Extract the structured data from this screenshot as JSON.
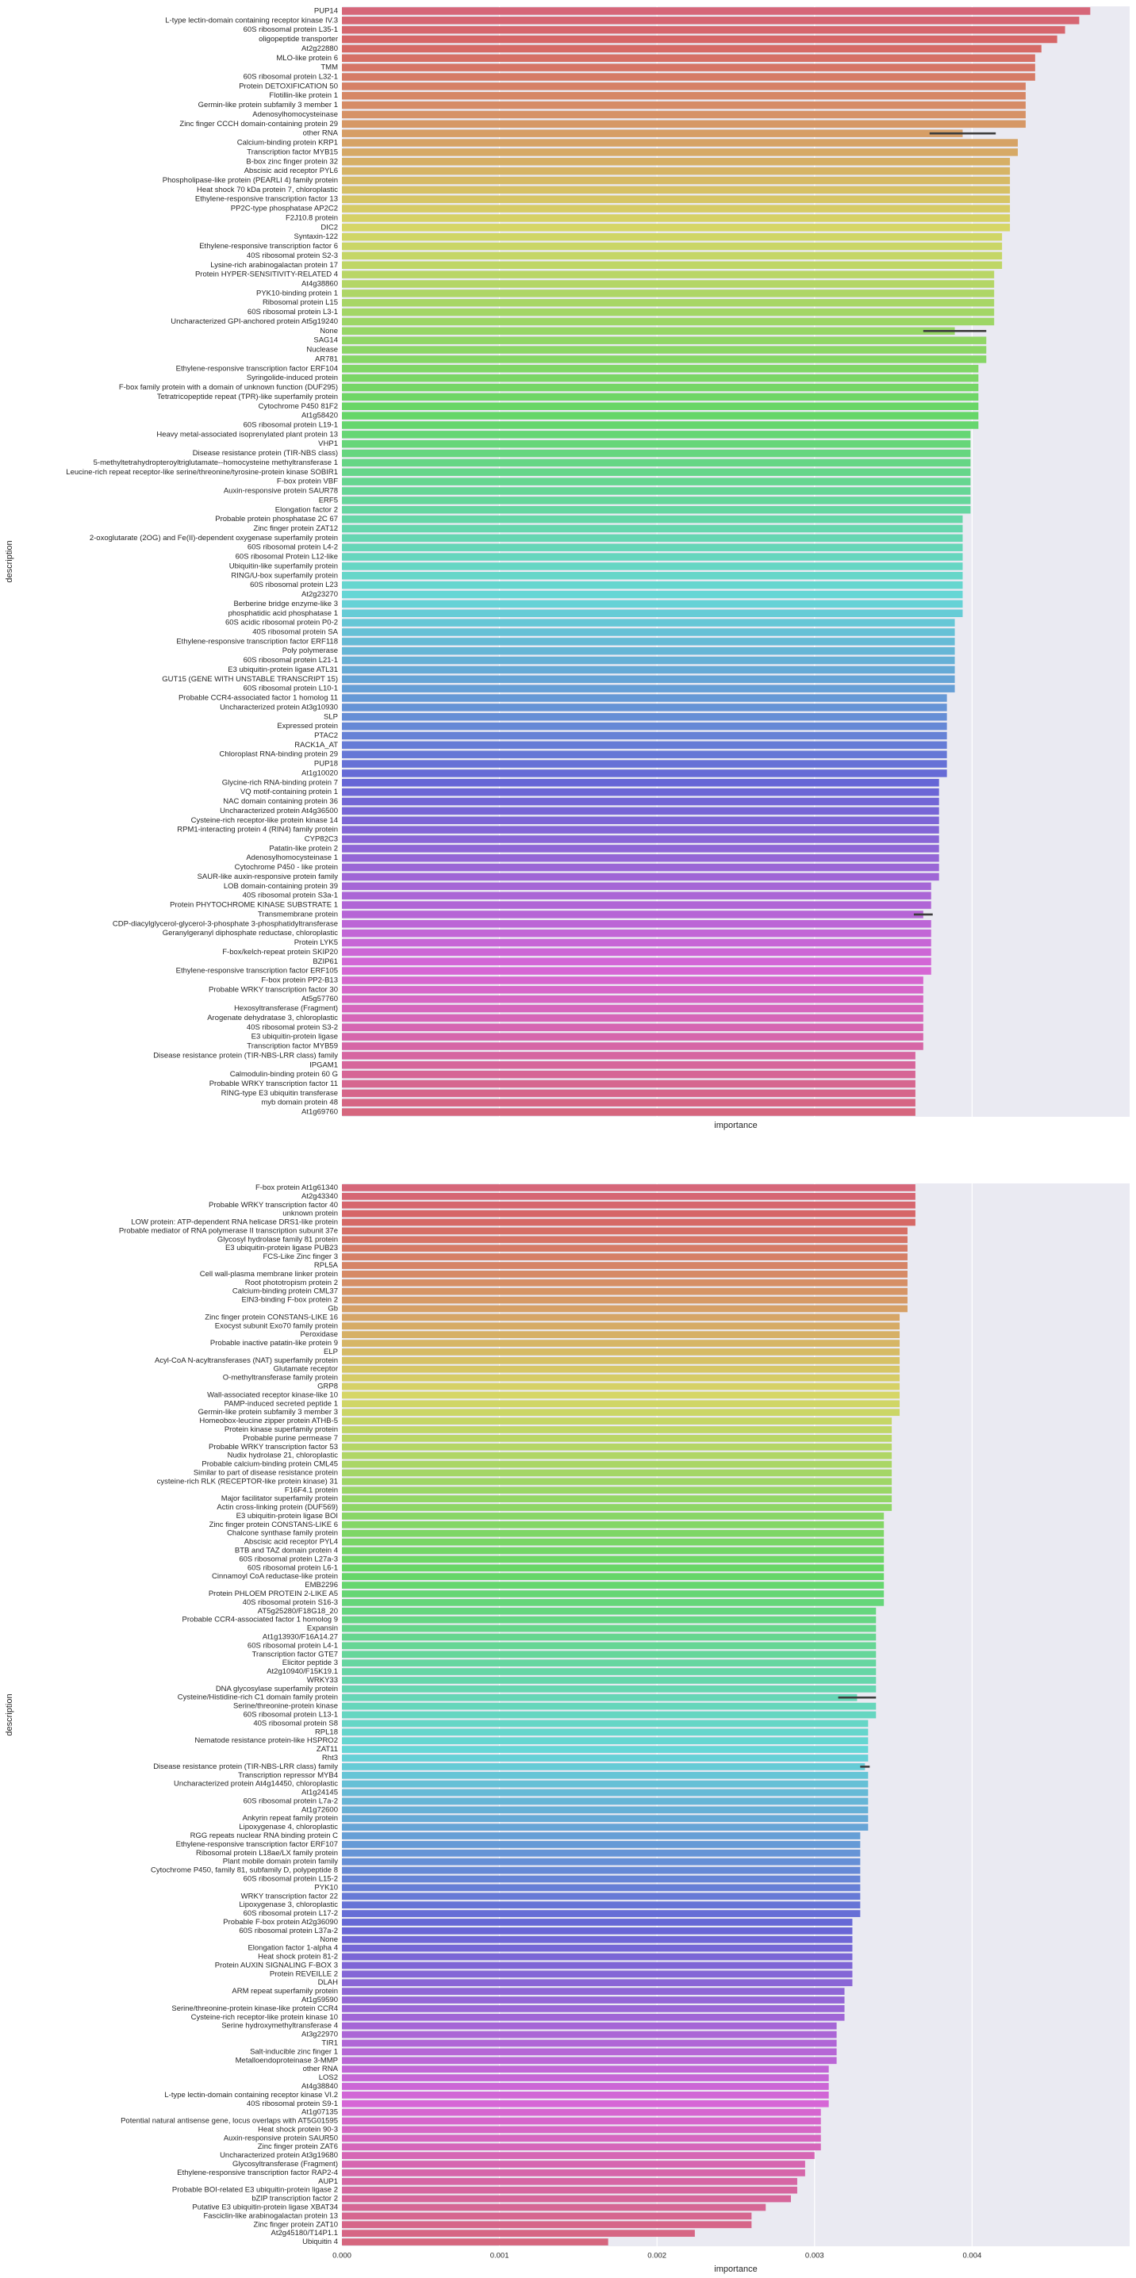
{
  "chart_data": [
    {
      "type": "bar",
      "orientation": "horizontal",
      "x_label": "importance",
      "y_label": "description",
      "palette": "husl",
      "grid": true,
      "show_xtick_labels": false,
      "xlim": [
        0,
        0.005
      ],
      "xticks": [
        0,
        0.001,
        0.002,
        0.003,
        0.004
      ],
      "categories": [
        "PUP14",
        "L-type lectin-domain containing receptor kinase IV.3",
        "60S ribosomal protein L35-1",
        "oligopeptide transporter",
        "At2g22880",
        "MLO-like protein 6",
        "TMM",
        "60S ribosomal protein L32-1",
        "Protein DETOXIFICATION 50",
        "Flotillin-like protein 1",
        "Germin-like protein subfamily 3 member 1",
        "Adenosylhomocysteinase",
        "Zinc finger CCCH domain-containing protein 29",
        "other RNA",
        "Calcium-binding protein KRP1",
        "Transcription factor MYB15",
        "B-box zinc finger protein 32",
        "Abscisic acid receptor PYL6",
        "Phospholipase-like protein (PEARLI 4) family protein",
        "Heat shock 70 kDa protein 7, chloroplastic",
        "Ethylene-responsive transcription factor 13",
        "PP2C-type phosphatase AP2C2",
        "F2J10.8 protein",
        "DIC2",
        "Syntaxin-122",
        "Ethylene-responsive transcription factor 6",
        "40S ribosomal protein S2-3",
        "Lysine-rich arabinogalactan protein 17",
        "Protein HYPER-SENSITIVITY-RELATED 4",
        "At4g38860",
        "PYK10-binding protein 1",
        "Ribosomal protein L15",
        "60S ribosomal protein L3-1",
        "Uncharacterized GPI-anchored protein At5g19240",
        "None",
        "SAG14",
        "Nuclease",
        "AR781",
        "Ethylene-responsive transcription factor ERF104",
        "Syringolide-induced protein",
        "F-box family protein with a domain of unknown function (DUF295)",
        "Tetratricopeptide repeat (TPR)-like superfamily protein",
        "Cytochrome P450 81F2",
        "At1g58420",
        "60S ribosomal protein L19-1",
        "Heavy metal-associated isoprenylated plant protein 13",
        "VHP1",
        "Disease resistance protein (TIR-NBS class)",
        "5-methyltetrahydropteroyltriglutamate--homocysteine methyltransferase 1",
        "Leucine-rich repeat receptor-like serine/threonine/tyrosine-protein kinase SOBIR1",
        "F-box protein VBF",
        "Auxin-responsive protein SAUR78",
        "ERF5",
        "Elongation factor 2",
        "Probable protein phosphatase 2C 67",
        "Zinc finger protein ZAT12",
        "2-oxoglutarate (2OG) and Fe(II)-dependent oxygenase superfamily protein",
        "60S ribosomal protein L4-2",
        "60S ribosomal Protein L12-like",
        "Ubiquitin-like superfamily protein",
        "RING/U-box superfamily protein",
        "60S ribosomal protein L23",
        "At2g23270",
        "Berberine bridge enzyme-like 3",
        "phosphatidic acid phosphatase 1",
        "60S acidic ribosomal protein P0-2",
        "40S ribosomal protein SA",
        "Ethylene-responsive transcription factor ERF118",
        "Poly polymerase",
        "60S ribosomal protein L21-1",
        "E3 ubiquitin-protein ligase ATL31",
        "GUT15 (GENE WITH UNSTABLE TRANSCRIPT 15)",
        "60S ribosomal protein L10-1",
        "Probable CCR4-associated factor 1 homolog 11",
        "Uncharacterized protein At3g10930",
        "SLP",
        "Expressed protein",
        "PTAC2",
        "RACK1A_AT",
        "Chloroplast RNA-binding protein 29",
        "PUP18",
        "At1g10020",
        "Glycine-rich RNA-binding protein 7",
        "VQ motif-containing protein 1",
        "NAC domain containing protein 36",
        "Uncharacterized protein At4g36500",
        "Cysteine-rich receptor-like protein kinase 14",
        "RPM1-interacting protein 4 (RIN4) family protein",
        "CYP82C3",
        "Patatin-like protein 2",
        "Adenosylhomocysteinase 1",
        "Cytochrome P450 - like protein",
        "SAUR-like auxin-responsive protein family",
        "LOB domain-containing protein 39",
        "40S ribosomal protein S3a-1",
        "Protein PHYTOCHROME KINASE SUBSTRATE 1",
        "Transmembrane protein",
        "CDP-diacylglycerol-glycerol-3-phosphate 3-phosphatidyltransferase",
        "Geranylgeranyl diphosphate reductase, chloroplastic",
        "Protein LYK5",
        "F-box/kelch-repeat protein SKIP20",
        "BZIP61",
        "Ethylene-responsive transcription factor ERF105",
        "F-box protein PP2-B13",
        "Probable WRKY transcription factor 30",
        "At5g57760",
        "Hexosyltransferase (Fragment)",
        "Arogenate dehydratase 3, chloroplastic",
        "40S ribosomal protein S3-2",
        "E3 ubiquitin-protein ligase",
        "Transcription factor MYB59",
        "Disease resistance protein (TIR-NBS-LRR class) family",
        "IPGAM1",
        "Calmodulin-binding protein 60 G",
        "Probable WRKY transcription factor 11",
        "RING-type E3 ubiquitin transferase",
        "myb domain protein 48",
        "At1g69760"
      ],
      "values": [
        0.00475,
        0.00468,
        0.00459,
        0.00454,
        0.00444,
        0.0044,
        0.0044,
        0.0044,
        0.00434,
        0.00434,
        0.00434,
        0.00434,
        0.00434,
        0.00394,
        0.00429,
        0.00429,
        0.00424,
        0.00424,
        0.00424,
        0.00424,
        0.00424,
        0.00424,
        0.00424,
        0.00424,
        0.00419,
        0.00419,
        0.00419,
        0.00419,
        0.00414,
        0.00414,
        0.00414,
        0.00414,
        0.00414,
        0.00414,
        0.00389,
        0.00409,
        0.00409,
        0.00409,
        0.00404,
        0.00404,
        0.00404,
        0.00404,
        0.00404,
        0.00404,
        0.00404,
        0.00399,
        0.00399,
        0.00399,
        0.00399,
        0.00399,
        0.00399,
        0.00399,
        0.00399,
        0.00399,
        0.00394,
        0.00394,
        0.00394,
        0.00394,
        0.00394,
        0.00394,
        0.00394,
        0.00394,
        0.00394,
        0.00394,
        0.00394,
        0.00389,
        0.00389,
        0.00389,
        0.00389,
        0.00389,
        0.00389,
        0.00389,
        0.00389,
        0.00384,
        0.00384,
        0.00384,
        0.00384,
        0.00384,
        0.00384,
        0.00384,
        0.00384,
        0.00384,
        0.00379,
        0.00379,
        0.00379,
        0.00379,
        0.00379,
        0.00379,
        0.00379,
        0.00379,
        0.00379,
        0.00379,
        0.00379,
        0.00374,
        0.00374,
        0.00374,
        0.00369,
        0.00374,
        0.00374,
        0.00374,
        0.00374,
        0.00374,
        0.00374,
        0.00369,
        0.00369,
        0.00369,
        0.00369,
        0.00369,
        0.00369,
        0.00369,
        0.00369,
        0.00364,
        0.00364,
        0.00364,
        0.00364,
        0.00364,
        0.00364,
        0.00364
      ],
      "errors": [
        null,
        null,
        null,
        null,
        null,
        null,
        null,
        null,
        null,
        null,
        null,
        null,
        null,
        0.00021,
        null,
        null,
        null,
        null,
        null,
        null,
        null,
        null,
        null,
        null,
        null,
        null,
        null,
        null,
        null,
        null,
        null,
        null,
        null,
        null,
        0.0002,
        null,
        null,
        null,
        null,
        null,
        null,
        null,
        null,
        null,
        null,
        null,
        null,
        null,
        null,
        null,
        null,
        null,
        null,
        null,
        null,
        null,
        null,
        null,
        null,
        null,
        null,
        null,
        null,
        null,
        null,
        null,
        null,
        null,
        null,
        null,
        null,
        null,
        null,
        null,
        null,
        null,
        null,
        null,
        null,
        null,
        null,
        null,
        null,
        null,
        null,
        null,
        null,
        null,
        null,
        null,
        null,
        null,
        null,
        null,
        null,
        null,
        6e-05,
        null,
        null,
        null,
        null,
        null,
        null,
        null,
        null,
        null,
        null,
        null,
        null,
        null,
        null,
        null,
        null,
        null,
        null,
        null,
        null,
        null
      ]
    },
    {
      "type": "bar",
      "orientation": "horizontal",
      "x_label": "importance",
      "y_label": "description",
      "palette": "husl",
      "grid": true,
      "show_xtick_labels": true,
      "xlim": [
        0,
        0.005
      ],
      "xticks": [
        {
          "value": 0,
          "label": "0.000"
        },
        {
          "value": 0.001,
          "label": "0.001"
        },
        {
          "value": 0.002,
          "label": "0.002"
        },
        {
          "value": 0.003,
          "label": "0.003"
        },
        {
          "value": 0.004,
          "label": "0.004"
        }
      ],
      "categories": [
        "F-box protein At1g61340",
        "At2g43340",
        "Probable WRKY transcription factor 40",
        "unknown protein",
        "LOW protein: ATP-dependent RNA helicase DRS1-like protein",
        "Probable mediator of RNA polymerase II transcription subunit 37e",
        "Glycosyl hydrolase family 81 protein",
        "E3 ubiquitin-protein ligase PUB23",
        "FCS-Like Zinc finger 3",
        "RPL5A",
        "Cell wall-plasma membrane linker protein",
        "Root phototropism protein 2",
        "Calcium-binding protein CML37",
        "EIN3-binding F-box protein 2",
        "Gb",
        "Zinc finger protein CONSTANS-LIKE 16",
        "Exocyst subunit Exo70 family protein",
        "Peroxidase",
        "Probable inactive patatin-like protein 9",
        "ELP",
        "Acyl-CoA N-acyltransferases (NAT) superfamily protein",
        "Glutamate receptor",
        "O-methyltransferase family protein",
        "GRP8",
        "Wall-associated receptor kinase-like 10",
        "PAMP-induced secreted peptide 1",
        "Germin-like protein subfamily 3 member 3",
        "Homeobox-leucine zipper protein ATHB-5",
        "Protein kinase superfamily protein",
        "Probable purine permease 7",
        "Probable WRKY transcription factor 53",
        "Nudix hydrolase 21, chloroplastic",
        "Probable calcium-binding protein CML45",
        "Similar to part of disease resistance protein",
        "cysteine-rich RLK (RECEPTOR-like protein kinase) 31",
        "F16F4.1 protein",
        "Major facilitator superfamily protein",
        "Actin cross-linking protein (DUF569)",
        "E3 ubiquitin-protein ligase BOI",
        "Zinc finger protein CONSTANS-LIKE 6",
        "Chalcone synthase family protein",
        "Abscisic acid receptor PYL4",
        "BTB and TAZ domain protein 4",
        "60S ribosomal protein L27a-3",
        "60S ribosomal protein L6-1",
        "Cinnamoyl CoA reductase-like protein",
        "EMB2296",
        "Protein PHLOEM PROTEIN 2-LIKE A5",
        "40S ribosomal protein S16-3",
        "AT5g25280/F18G18_20",
        "Probable CCR4-associated factor 1 homolog 9",
        "Expansin",
        "At1g13930/F16A14.27",
        "60S ribosomal protein L4-1",
        "Transcription factor GTE7",
        "Elicitor peptide 3",
        "At2g10940/F15K19.1",
        "WRKY33",
        "DNA glycosylase superfamily protein",
        "Cysteine/Histidine-rich C1 domain family protein",
        "Serine/threonine-protein kinase",
        "60S ribosomal protein L13-1",
        "40S ribosomal protein S8",
        "RPL18",
        "Nematode resistance protein-like HSPRO2",
        "ZAT11",
        "Rht3",
        "Disease resistance protein (TIR-NBS-LRR class) family",
        "Transcription repressor MYB4",
        "Uncharacterized protein At4g14450, chloroplastic",
        "At1g24145",
        "60S ribosomal protein L7a-2",
        "At1g72600",
        "Ankyrin repeat family protein",
        "Lipoxygenase 4, chloroplastic",
        "RGG repeats nuclear RNA binding protein C",
        "Ethylene-responsive transcription factor ERF107",
        "Ribosomal protein L18ae/LX family protein",
        "Plant mobile domain protein family",
        "Cytochrome P450, family 81, subfamily D, polypeptide 8",
        "60S ribosomal protein L15-2",
        "PYK10",
        "WRKY transcription factor 22",
        "Lipoxygenase 3, chloroplastic",
        "60S ribosomal protein L17-2",
        "Probable F-box protein At2g36090",
        "60S ribosomal protein L37a-2",
        "None",
        "Elongation factor 1-alpha 4",
        "Heat shock protein 81-2",
        "Protein AUXIN SIGNALING F-BOX 3",
        "Protein REVEILLE 2",
        "DLAH",
        "ARM repeat superfamily protein",
        "At1g59590",
        "Serine/threonine-protein kinase-like protein CCR4",
        "Cysteine-rich receptor-like protein kinase 10",
        "Serine hydroxymethyltransferase 4",
        "At3g22970",
        "TIR1",
        "Salt-inducible zinc finger 1",
        "Metalloendoproteinase 3-MMP",
        "other RNA",
        "LOS2",
        "At4g38840",
        "L-type lectin-domain containing receptor kinase VI.2",
        "40S ribosomal protein S9-1",
        "At1g07135",
        "Potential natural antisense gene, locus overlaps with AT5G01595",
        "Heat shock protein 90-3",
        "Auxin-responsive protein SAUR50",
        "Zinc finger protein ZAT6",
        "Uncharacterized protein At3g19680",
        "Glycosyltransferase (Fragment)",
        "Ethylene-responsive transcription factor RAP2-4",
        "AUP1",
        "Probable BOI-related E3 ubiquitin-protein ligase 2",
        "bZIP transcription factor 2",
        "Putative E3 ubiquitin-protein ligase XBAT34",
        "Fasciclin-like arabinogalactan protein 13",
        "Zinc finger protein ZAT10",
        "At2g45180/T14P1.1",
        "Ubiquitin 4"
      ],
      "values": [
        0.00364,
        0.00364,
        0.00364,
        0.00364,
        0.00364,
        0.00359,
        0.00359,
        0.00359,
        0.00359,
        0.00359,
        0.00359,
        0.00359,
        0.00359,
        0.00359,
        0.00359,
        0.00354,
        0.00354,
        0.00354,
        0.00354,
        0.00354,
        0.00354,
        0.00354,
        0.00354,
        0.00354,
        0.00354,
        0.00354,
        0.00354,
        0.00349,
        0.00349,
        0.00349,
        0.00349,
        0.00349,
        0.00349,
        0.00349,
        0.00349,
        0.00349,
        0.00349,
        0.00349,
        0.00344,
        0.00344,
        0.00344,
        0.00344,
        0.00344,
        0.00344,
        0.00344,
        0.00344,
        0.00344,
        0.00344,
        0.00344,
        0.00339,
        0.00339,
        0.00339,
        0.00339,
        0.00339,
        0.00339,
        0.00339,
        0.00339,
        0.00339,
        0.00339,
        0.00327,
        0.00339,
        0.00339,
        0.00334,
        0.00334,
        0.00334,
        0.00334,
        0.00334,
        0.00332,
        0.00334,
        0.00334,
        0.00334,
        0.00334,
        0.00334,
        0.00334,
        0.00334,
        0.00329,
        0.00329,
        0.00329,
        0.00329,
        0.00329,
        0.00329,
        0.00329,
        0.00329,
        0.00329,
        0.00329,
        0.00324,
        0.00324,
        0.00324,
        0.00324,
        0.00324,
        0.00324,
        0.00324,
        0.00324,
        0.00319,
        0.00319,
        0.00319,
        0.00319,
        0.00314,
        0.00314,
        0.00314,
        0.00314,
        0.00314,
        0.00309,
        0.00309,
        0.00309,
        0.00309,
        0.00309,
        0.00304,
        0.00304,
        0.00304,
        0.00304,
        0.00304,
        0.003,
        0.00294,
        0.00294,
        0.00289,
        0.00289,
        0.00285,
        0.00269,
        0.0026,
        0.0026,
        0.00224,
        0.00169
      ],
      "errors": [
        null,
        null,
        null,
        null,
        null,
        null,
        null,
        null,
        null,
        null,
        null,
        null,
        null,
        null,
        null,
        null,
        null,
        null,
        null,
        null,
        null,
        null,
        null,
        null,
        null,
        null,
        null,
        null,
        null,
        null,
        null,
        null,
        null,
        null,
        null,
        null,
        null,
        null,
        null,
        null,
        null,
        null,
        null,
        null,
        null,
        null,
        null,
        null,
        null,
        null,
        null,
        null,
        null,
        null,
        null,
        null,
        null,
        null,
        null,
        0.00012,
        null,
        null,
        null,
        null,
        null,
        null,
        null,
        3e-05,
        null,
        null,
        null,
        null,
        null,
        null,
        null,
        null,
        null,
        null,
        null,
        null,
        null,
        null,
        null,
        null,
        null,
        null,
        null,
        null,
        null,
        null,
        null,
        null,
        null,
        null,
        null,
        null,
        null,
        null,
        null,
        null,
        null,
        null,
        null,
        null,
        null,
        null,
        null,
        null,
        null,
        null,
        null,
        null,
        null,
        null,
        null,
        null,
        null,
        null,
        null,
        null,
        null,
        null,
        null
      ]
    }
  ]
}
